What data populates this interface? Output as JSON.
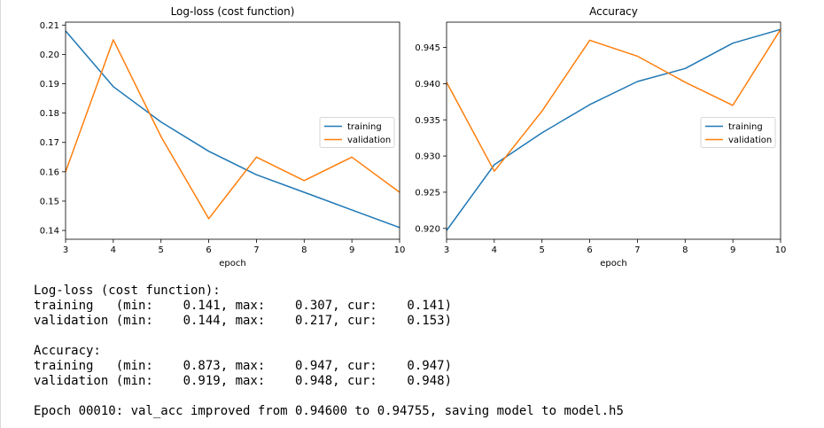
{
  "chart_data": [
    {
      "type": "line",
      "title": "Log-loss (cost function)",
      "xlabel": "epoch",
      "ylabel": "",
      "xlim": [
        3,
        10
      ],
      "ylim": [
        0.137,
        0.211
      ],
      "x": [
        3,
        4,
        5,
        6,
        7,
        8,
        9,
        10
      ],
      "xticks": [
        "3",
        "4",
        "5",
        "6",
        "7",
        "8",
        "9",
        "10"
      ],
      "yticks": [
        0.14,
        0.15,
        0.16,
        0.17,
        0.18,
        0.19,
        0.2,
        0.21
      ],
      "ytick_labels": [
        "0.14",
        "0.15",
        "0.16",
        "0.17",
        "0.18",
        "0.19",
        "0.20",
        "0.21"
      ],
      "series": [
        {
          "name": "training",
          "color": "#1f77b4",
          "values": [
            0.208,
            0.189,
            0.177,
            0.167,
            0.159,
            0.153,
            0.147,
            0.141
          ]
        },
        {
          "name": "validation",
          "color": "#ff7f0e",
          "values": [
            0.16,
            0.205,
            0.172,
            0.144,
            0.165,
            0.157,
            0.165,
            0.153
          ]
        }
      ],
      "legend": "center-right",
      "grid": false
    },
    {
      "type": "line",
      "title": "Accuracy",
      "xlabel": "epoch",
      "ylabel": "",
      "xlim": [
        3,
        10
      ],
      "ylim": [
        0.9185,
        0.9485
      ],
      "x": [
        3,
        4,
        5,
        6,
        7,
        8,
        9,
        10
      ],
      "xticks": [
        "3",
        "4",
        "5",
        "6",
        "7",
        "8",
        "9",
        "10"
      ],
      "yticks": [
        0.92,
        0.925,
        0.93,
        0.935,
        0.94,
        0.945
      ],
      "ytick_labels": [
        "0.920",
        "0.925",
        "0.930",
        "0.935",
        "0.940",
        "0.945"
      ],
      "series": [
        {
          "name": "training",
          "color": "#1f77b4",
          "values": [
            0.9197,
            0.9288,
            0.9332,
            0.9371,
            0.9403,
            0.9421,
            0.9456,
            0.9475
          ]
        },
        {
          "name": "validation",
          "color": "#ff7f0e",
          "values": [
            0.9402,
            0.9279,
            0.9362,
            0.946,
            0.9438,
            0.9402,
            0.937,
            0.9475
          ]
        }
      ],
      "legend": "center-right",
      "grid": false
    }
  ],
  "log": {
    "loss_header": "Log-loss (cost function):",
    "loss_training": "training   (min:    0.141, max:    0.307, cur:    0.141)",
    "loss_validation": "validation (min:    0.144, max:    0.217, cur:    0.153)",
    "acc_header": "Accuracy:",
    "acc_training": "training   (min:    0.873, max:    0.947, cur:    0.947)",
    "acc_validation": "validation (min:    0.919, max:    0.948, cur:    0.948)",
    "epoch_line": "Epoch 00010: val_acc improved from 0.94600 to 0.94755, saving model to model.h5"
  }
}
